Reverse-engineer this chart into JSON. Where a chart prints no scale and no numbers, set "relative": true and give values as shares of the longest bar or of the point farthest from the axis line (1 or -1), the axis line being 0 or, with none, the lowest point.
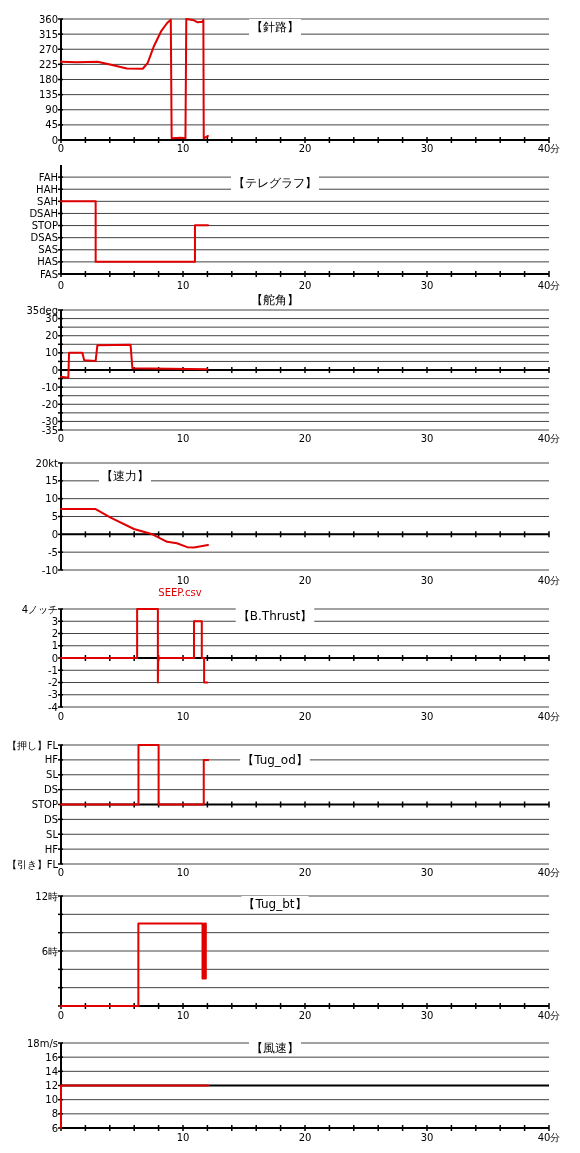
{
  "chart_data": [
    {
      "type": "line",
      "title": "【針路】",
      "color": "#e00000",
      "grid": "y",
      "xlim": [
        0,
        40
      ],
      "ylim": [
        0,
        360
      ],
      "xticks": [
        {
          "value": 0,
          "label": "0"
        },
        {
          "value": 2,
          "label": null
        },
        {
          "value": 4,
          "label": null
        },
        {
          "value": 6,
          "label": null
        },
        {
          "value": 8,
          "label": null
        },
        {
          "value": 10,
          "label": "10"
        },
        {
          "value": 12,
          "label": null
        },
        {
          "value": 14,
          "label": null
        },
        {
          "value": 16,
          "label": null
        },
        {
          "value": 18,
          "label": null
        },
        {
          "value": 20,
          "label": "20"
        },
        {
          "value": 22,
          "label": null
        },
        {
          "value": 24,
          "label": null
        },
        {
          "value": 26,
          "label": null
        },
        {
          "value": 28,
          "label": null
        },
        {
          "value": 30,
          "label": "30"
        },
        {
          "value": 32,
          "label": null
        },
        {
          "value": 34,
          "label": null
        },
        {
          "value": 36,
          "label": null
        },
        {
          "value": 38,
          "label": null
        },
        {
          "value": 40,
          "label": "40分"
        }
      ],
      "yticks": [
        0,
        45,
        90,
        135,
        180,
        225,
        270,
        315,
        360
      ],
      "x": [
        0,
        1.3,
        3.0,
        4.1,
        5.4,
        6.7,
        7.1,
        7.6,
        8.2,
        8.7,
        9.0,
        9.07,
        9.8,
        10.2,
        10.27,
        10.9,
        11.2,
        11.6,
        11.67,
        11.7,
        12.05
      ],
      "values": [
        233,
        231,
        233,
        224,
        213,
        212,
        229,
        278,
        323,
        348,
        358,
        5,
        7,
        5,
        360,
        356,
        350,
        352,
        358,
        5,
        12
      ]
    },
    {
      "type": "line",
      "title": "【テレグラフ】",
      "color": "#e00000",
      "grid": "y",
      "relative": true,
      "xlim": [
        0,
        40
      ],
      "xticks": [
        {
          "value": 0,
          "label": "0"
        },
        {
          "value": 2,
          "label": null
        },
        {
          "value": 4,
          "label": null
        },
        {
          "value": 6,
          "label": null
        },
        {
          "value": 8,
          "label": null
        },
        {
          "value": 10,
          "label": "10"
        },
        {
          "value": 12,
          "label": null
        },
        {
          "value": 14,
          "label": null
        },
        {
          "value": 16,
          "label": null
        },
        {
          "value": 18,
          "label": null
        },
        {
          "value": 20,
          "label": "20"
        },
        {
          "value": 22,
          "label": null
        },
        {
          "value": 24,
          "label": null
        },
        {
          "value": 26,
          "label": null
        },
        {
          "value": 28,
          "label": null
        },
        {
          "value": 30,
          "label": "30"
        },
        {
          "value": 32,
          "label": null
        },
        {
          "value": 34,
          "label": null
        },
        {
          "value": 36,
          "label": null
        },
        {
          "value": 38,
          "label": null
        },
        {
          "value": 40,
          "label": "40分"
        }
      ],
      "y_categories": [
        "FAH",
        "HAH",
        "SAH",
        "DSAH",
        "STOP",
        "DSAS",
        "SAS",
        "HAS",
        "FAS"
      ],
      "x": [
        0,
        2.84,
        2.84,
        10.98,
        10.98,
        12.05
      ],
      "values": [
        1,
        1,
        0.17,
        0.17,
        0.67,
        0.67
      ]
    },
    {
      "type": "line",
      "title": "【舵角】",
      "color": "#e00000",
      "grid": "y",
      "xlim": [
        0,
        40
      ],
      "ylim": [
        -35,
        35
      ],
      "xticks": [
        {
          "value": 0,
          "label": "0"
        },
        {
          "value": 2,
          "label": null
        },
        {
          "value": 4,
          "label": null
        },
        {
          "value": 6,
          "label": null
        },
        {
          "value": 8,
          "label": null
        },
        {
          "value": 10,
          "label": "10"
        },
        {
          "value": 12,
          "label": null
        },
        {
          "value": 14,
          "label": null
        },
        {
          "value": 16,
          "label": null
        },
        {
          "value": 18,
          "label": null
        },
        {
          "value": 20,
          "label": "20"
        },
        {
          "value": 22,
          "label": null
        },
        {
          "value": 24,
          "label": null
        },
        {
          "value": 26,
          "label": null
        },
        {
          "value": 28,
          "label": null
        },
        {
          "value": 30,
          "label": "30"
        },
        {
          "value": 32,
          "label": null
        },
        {
          "value": 34,
          "label": null
        },
        {
          "value": 36,
          "label": null
        },
        {
          "value": 38,
          "label": null
        },
        {
          "value": 40,
          "label": "40分"
        }
      ],
      "yticks": [
        {
          "value": -35,
          "label": "-35"
        },
        -30,
        {
          "value": -25,
          "label": null
        },
        -20,
        {
          "value": -15,
          "label": null
        },
        -10,
        {
          "value": -5,
          "label": null
        },
        0,
        {
          "value": 5,
          "label": null
        },
        10,
        {
          "value": 15,
          "label": null
        },
        20,
        {
          "value": 25,
          "label": null
        },
        30,
        {
          "value": 35,
          "label": "35deg"
        }
      ],
      "x": [
        0,
        0.6,
        0.66,
        1.75,
        1.9,
        2.84,
        2.98,
        5.7,
        5.85,
        12.0
      ],
      "values": [
        -4,
        -4.5,
        10,
        10,
        5.7,
        5.3,
        14.4,
        14.8,
        1,
        0.4
      ]
    },
    {
      "type": "line",
      "title": "【速力】",
      "color": "#e00000",
      "grid": "y",
      "xlim": [
        0,
        40
      ],
      "ylim": [
        -10,
        20
      ],
      "xticks": [
        {
          "value": 0,
          "label": null
        },
        {
          "value": 2,
          "label": null
        },
        {
          "value": 4,
          "label": null
        },
        {
          "value": 6,
          "label": null
        },
        {
          "value": 8,
          "label": null
        },
        {
          "value": 10,
          "label": "10"
        },
        {
          "value": 12,
          "label": null
        },
        {
          "value": 14,
          "label": null
        },
        {
          "value": 16,
          "label": null
        },
        {
          "value": 18,
          "label": null
        },
        {
          "value": 20,
          "label": "20"
        },
        {
          "value": 22,
          "label": null
        },
        {
          "value": 24,
          "label": null
        },
        {
          "value": 26,
          "label": null
        },
        {
          "value": 28,
          "label": null
        },
        {
          "value": 30,
          "label": "30"
        },
        {
          "value": 32,
          "label": null
        },
        {
          "value": 34,
          "label": null
        },
        {
          "value": 36,
          "label": null
        },
        {
          "value": 38,
          "label": null
        },
        {
          "value": 40,
          "label": "40分"
        }
      ],
      "yticks": [
        -10,
        -5,
        0,
        5,
        10,
        15,
        {
          "value": 20,
          "label": "20kt"
        }
      ],
      "x": [
        0,
        2.84,
        4.07,
        5.98,
        7.49,
        8.7,
        9.5,
        10.35,
        10.9,
        12.05
      ],
      "values": [
        7.1,
        7.1,
        4.7,
        1.5,
        0,
        -2.1,
        -2.5,
        -3.6,
        -3.7,
        -3.0
      ],
      "annotations": [
        "SEEP.csv"
      ]
    },
    {
      "type": "line",
      "title": "【B.Thrust】",
      "color": "#e00000",
      "grid": "y",
      "xlim": [
        0,
        40
      ],
      "ylim": [
        -4,
        4
      ],
      "xticks": [
        {
          "value": 0,
          "label": "0"
        },
        {
          "value": 2,
          "label": null
        },
        {
          "value": 4,
          "label": null
        },
        {
          "value": 6,
          "label": null
        },
        {
          "value": 8,
          "label": null
        },
        {
          "value": 10,
          "label": "10"
        },
        {
          "value": 12,
          "label": null
        },
        {
          "value": 14,
          "label": null
        },
        {
          "value": 16,
          "label": null
        },
        {
          "value": 18,
          "label": null
        },
        {
          "value": 20,
          "label": "20"
        },
        {
          "value": 22,
          "label": null
        },
        {
          "value": 24,
          "label": null
        },
        {
          "value": 26,
          "label": null
        },
        {
          "value": 28,
          "label": null
        },
        {
          "value": 30,
          "label": "30"
        },
        {
          "value": 32,
          "label": null
        },
        {
          "value": 34,
          "label": null
        },
        {
          "value": 36,
          "label": null
        },
        {
          "value": 38,
          "label": null
        },
        {
          "value": 40,
          "label": "40分"
        }
      ],
      "yticks": [
        -4,
        -3,
        -2,
        -1,
        0,
        1,
        2,
        3,
        {
          "value": 4,
          "label": "4ノッチ"
        }
      ],
      "x": [
        0,
        6.24,
        6.24,
        7.94,
        7.94,
        7.97,
        10.9,
        10.9,
        11.54,
        11.54,
        11.73,
        11.73,
        12.0
      ],
      "values": [
        0,
        0,
        4,
        4,
        -2,
        0,
        0,
        3,
        3,
        0,
        0,
        -2,
        -2
      ]
    },
    {
      "type": "line",
      "title": "【Tug_od】",
      "color": "#e00000",
      "grid": "y",
      "relative": true,
      "xlim": [
        0,
        40
      ],
      "xticks": [
        {
          "value": 0,
          "label": "0"
        },
        {
          "value": 2,
          "label": null
        },
        {
          "value": 4,
          "label": null
        },
        {
          "value": 6,
          "label": null
        },
        {
          "value": 8,
          "label": null
        },
        {
          "value": 10,
          "label": "10"
        },
        {
          "value": 12,
          "label": null
        },
        {
          "value": 14,
          "label": null
        },
        {
          "value": 16,
          "label": null
        },
        {
          "value": 18,
          "label": null
        },
        {
          "value": 20,
          "label": "20"
        },
        {
          "value": 22,
          "label": null
        },
        {
          "value": 24,
          "label": null
        },
        {
          "value": 26,
          "label": null
        },
        {
          "value": 28,
          "label": null
        },
        {
          "value": 30,
          "label": "30"
        },
        {
          "value": 32,
          "label": null
        },
        {
          "value": 34,
          "label": null
        },
        {
          "value": 36,
          "label": null
        },
        {
          "value": 38,
          "label": null
        },
        {
          "value": 40,
          "label": "40分"
        }
      ],
      "y_categories": [
        "【押し】FL",
        "HF",
        "SL",
        "DS",
        "STOP",
        "DS",
        "SL",
        "HF",
        "【引き】FL"
      ],
      "x": [
        0,
        6.35,
        6.35,
        8.0,
        8.0,
        11.7,
        11.7,
        12.06
      ],
      "values": [
        0,
        0,
        1,
        1,
        0,
        0,
        0.75,
        0.75
      ]
    },
    {
      "type": "line",
      "title": "【Tug_bt】",
      "color": "#e00000",
      "grid": "y",
      "xlim": [
        0,
        40
      ],
      "ylim": [
        0,
        12
      ],
      "xticks": [
        {
          "value": 0,
          "label": "0"
        },
        {
          "value": 2,
          "label": null
        },
        {
          "value": 4,
          "label": null
        },
        {
          "value": 6,
          "label": null
        },
        {
          "value": 8,
          "label": null
        },
        {
          "value": 10,
          "label": "10"
        },
        {
          "value": 12,
          "label": null
        },
        {
          "value": 14,
          "label": null
        },
        {
          "value": 16,
          "label": null
        },
        {
          "value": 18,
          "label": null
        },
        {
          "value": 20,
          "label": "20"
        },
        {
          "value": 22,
          "label": null
        },
        {
          "value": 24,
          "label": null
        },
        {
          "value": 26,
          "label": null
        },
        {
          "value": 28,
          "label": null
        },
        {
          "value": 30,
          "label": "30"
        },
        {
          "value": 32,
          "label": null
        },
        {
          "value": 34,
          "label": null
        },
        {
          "value": 36,
          "label": null
        },
        {
          "value": 38,
          "label": null
        },
        {
          "value": 40,
          "label": "40分"
        }
      ],
      "yticks": [
        {
          "value": 0,
          "label": null
        },
        {
          "value": 2,
          "label": null
        },
        {
          "value": 4,
          "label": null
        },
        {
          "value": 6,
          "label": "6時"
        },
        {
          "value": 8,
          "label": null
        },
        {
          "value": 10,
          "label": null
        },
        {
          "value": 12,
          "label": "12時"
        }
      ],
      "x": [
        0,
        6.34,
        6.34,
        11.6,
        11.6,
        11.75,
        11.75,
        11.87,
        11.87
      ],
      "values": [
        0,
        0,
        9,
        9,
        3,
        3,
        9,
        9,
        3
      ]
    },
    {
      "type": "line",
      "title": "【風速】",
      "color": "#e00000",
      "grid": "y",
      "xlim": [
        0,
        40
      ],
      "ylim": [
        6,
        18
      ],
      "xticks": [
        {
          "value": 0,
          "label": null
        },
        {
          "value": 2,
          "label": null
        },
        {
          "value": 4,
          "label": null
        },
        {
          "value": 6,
          "label": null
        },
        {
          "value": 8,
          "label": null
        },
        {
          "value": 10,
          "label": "10"
        },
        {
          "value": 12,
          "label": null
        },
        {
          "value": 14,
          "label": null
        },
        {
          "value": 16,
          "label": null
        },
        {
          "value": 18,
          "label": null
        },
        {
          "value": 20,
          "label": "20"
        },
        {
          "value": 22,
          "label": null
        },
        {
          "value": 24,
          "label": null
        },
        {
          "value": 26,
          "label": null
        },
        {
          "value": 28,
          "label": null
        },
        {
          "value": 30,
          "label": "30"
        },
        {
          "value": 32,
          "label": null
        },
        {
          "value": 34,
          "label": null
        },
        {
          "value": 36,
          "label": null
        },
        {
          "value": 38,
          "label": null
        },
        {
          "value": 40,
          "label": "40分"
        }
      ],
      "yticks": [
        6,
        8,
        10,
        12,
        14,
        16,
        {
          "value": 18,
          "label": "18m/s"
        }
      ],
      "ref_lines": [
        {
          "axis": "y",
          "value": 12
        }
      ],
      "x": [
        0,
        0,
        12.05
      ],
      "values": [
        6,
        12,
        12
      ]
    }
  ]
}
